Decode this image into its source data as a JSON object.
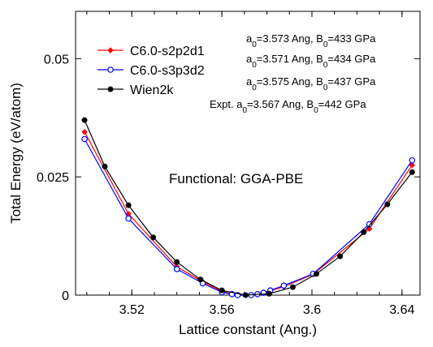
{
  "chart_data": {
    "type": "line",
    "xlabel": "Lattice constant (Ang.)",
    "ylabel": "Total Energy (eV/atom)",
    "xlim": [
      3.495,
      3.648
    ],
    "ylim": [
      0,
      0.06
    ],
    "x_ticks": [
      "3.52",
      "3.56",
      "3.6",
      "3.64"
    ],
    "y_ticks": [
      "0",
      "0.025",
      "0.05"
    ],
    "grid": false,
    "legend_position": "top-left",
    "series": [
      {
        "name": "C6.0-s2p2d1",
        "color": "#ff0000",
        "marker": "diamond",
        "x": [
          3.499,
          3.5185,
          3.54,
          3.5515,
          3.56,
          3.5645,
          3.567,
          3.573,
          3.5758,
          3.5785,
          3.5815,
          3.5875,
          3.6005,
          3.6255,
          3.6445
        ],
        "y": [
          0.0345,
          0.0172,
          0.006,
          0.0028,
          0.0008,
          0.0003,
          0.0,
          0.0,
          0.0002,
          0.0004,
          0.0009,
          0.0018,
          0.0044,
          0.014,
          0.0275
        ]
      },
      {
        "name": "C6.0-s3p3d2",
        "color": "#0000ff",
        "marker": "open-circle",
        "x": [
          3.499,
          3.5185,
          3.54,
          3.5515,
          3.56,
          3.5645,
          3.567,
          3.573,
          3.5758,
          3.5785,
          3.5815,
          3.5875,
          3.6005,
          3.6255,
          3.6445
        ],
        "y": [
          0.033,
          0.0162,
          0.0055,
          0.0025,
          0.0006,
          0.0002,
          0.0,
          0.0,
          0.0002,
          0.0005,
          0.001,
          0.002,
          0.0045,
          0.015,
          0.0285
        ]
      },
      {
        "name": "Wien2k",
        "color": "#000000",
        "marker": "filled-circle",
        "x": [
          3.499,
          3.508,
          3.5185,
          3.5295,
          3.54,
          3.5505,
          3.56,
          3.5705,
          3.581,
          3.5915,
          3.602,
          3.6125,
          3.623,
          3.6335,
          3.6445
        ],
        "y": [
          0.037,
          0.0272,
          0.019,
          0.0122,
          0.007,
          0.0033,
          0.001,
          0.0,
          0.0003,
          0.0017,
          0.0045,
          0.0082,
          0.0133,
          0.0192,
          0.026
        ]
      }
    ],
    "annotations": {
      "fit1": {
        "a0": "3.573",
        "B0": "433"
      },
      "fit2": {
        "a0": "3.571",
        "B0": "434"
      },
      "fit3": {
        "a0": "3.575",
        "B0": "437"
      },
      "expt_label": "Expt.",
      "expt": {
        "a0": "3.567",
        "B0": "442"
      },
      "a0_symbol": "a",
      "a0_sub": "0",
      "a0_unit": "=",
      "len_unit": " Ang, ",
      "b0_symbol": "B",
      "b0_sub": "0",
      "b0_unit": " GPa",
      "functional": "Functional: GGA-PBE"
    }
  }
}
